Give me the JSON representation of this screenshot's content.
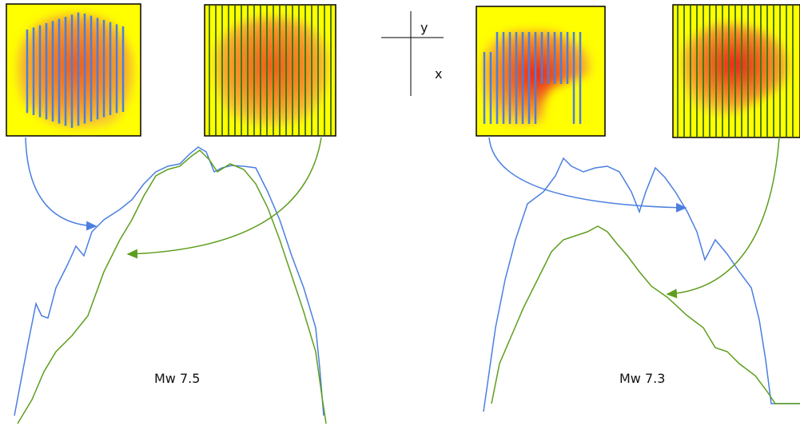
{
  "axes": {
    "y_label": "y",
    "x_label": "x"
  },
  "panels": [
    {
      "label": "Mw 7.5"
    },
    {
      "label": "Mw 7.3"
    }
  ]
}
